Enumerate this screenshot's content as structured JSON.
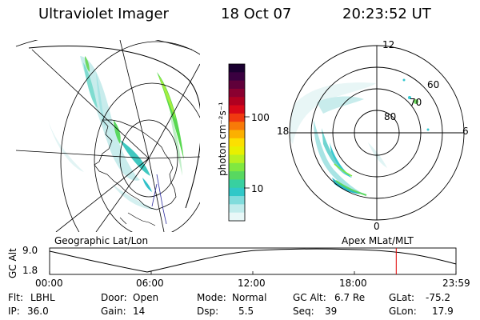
{
  "header": {
    "instrument": "Ultraviolet Imager",
    "date": "18 Oct 07",
    "time": "20:23:52 UT"
  },
  "colorbar": {
    "label": "photon cm⁻²s⁻¹",
    "ticks": [
      "100",
      "10"
    ],
    "colors": [
      "#1a0030",
      "#3a0040",
      "#60003a",
      "#8a0030",
      "#b00020",
      "#d80818",
      "#f03a10",
      "#f87a08",
      "#fcb000",
      "#fce000",
      "#e8f000",
      "#b8f020",
      "#80e840",
      "#58d860",
      "#38d0a0",
      "#30c8c8",
      "#80dcdc",
      "#c0ecec",
      "#e8f8f8"
    ]
  },
  "polar_plot": {
    "labels_hour": [
      "12",
      "18",
      "6",
      "0"
    ],
    "labels_lat": [
      "60",
      "70",
      "80"
    ]
  },
  "plot_titles": {
    "left": "Geographic Lat/Lon",
    "right": "Apex  MLat/MLT"
  },
  "alt_plot": {
    "ylabel": "GC Alt",
    "yticks": [
      "9.0",
      "1.8"
    ],
    "xticks": [
      "00:00",
      "06:00",
      "12:00",
      "18:00",
      "23:59"
    ],
    "current_time_fraction": 0.853
  },
  "info": {
    "filter_label": "Flt:",
    "filter_value": "LBHL",
    "ip_label": "IP:",
    "ip_value": "36.0",
    "door_label": "Door:",
    "door_value": "Open",
    "gain_label": "Gain:",
    "gain_value": "14",
    "mode_label": "Mode:",
    "mode_value": "Normal",
    "dsp_label": "Dsp:",
    "dsp_value": "5.5",
    "gcalt_label": "GC Alt:",
    "gcalt_value": "6.7 Re",
    "seq_label": "Seq:",
    "seq_value": "39",
    "glat_label": "GLat:",
    "glat_value": "-75.2",
    "glon_label": "GLon:",
    "glon_value": "17.9"
  }
}
